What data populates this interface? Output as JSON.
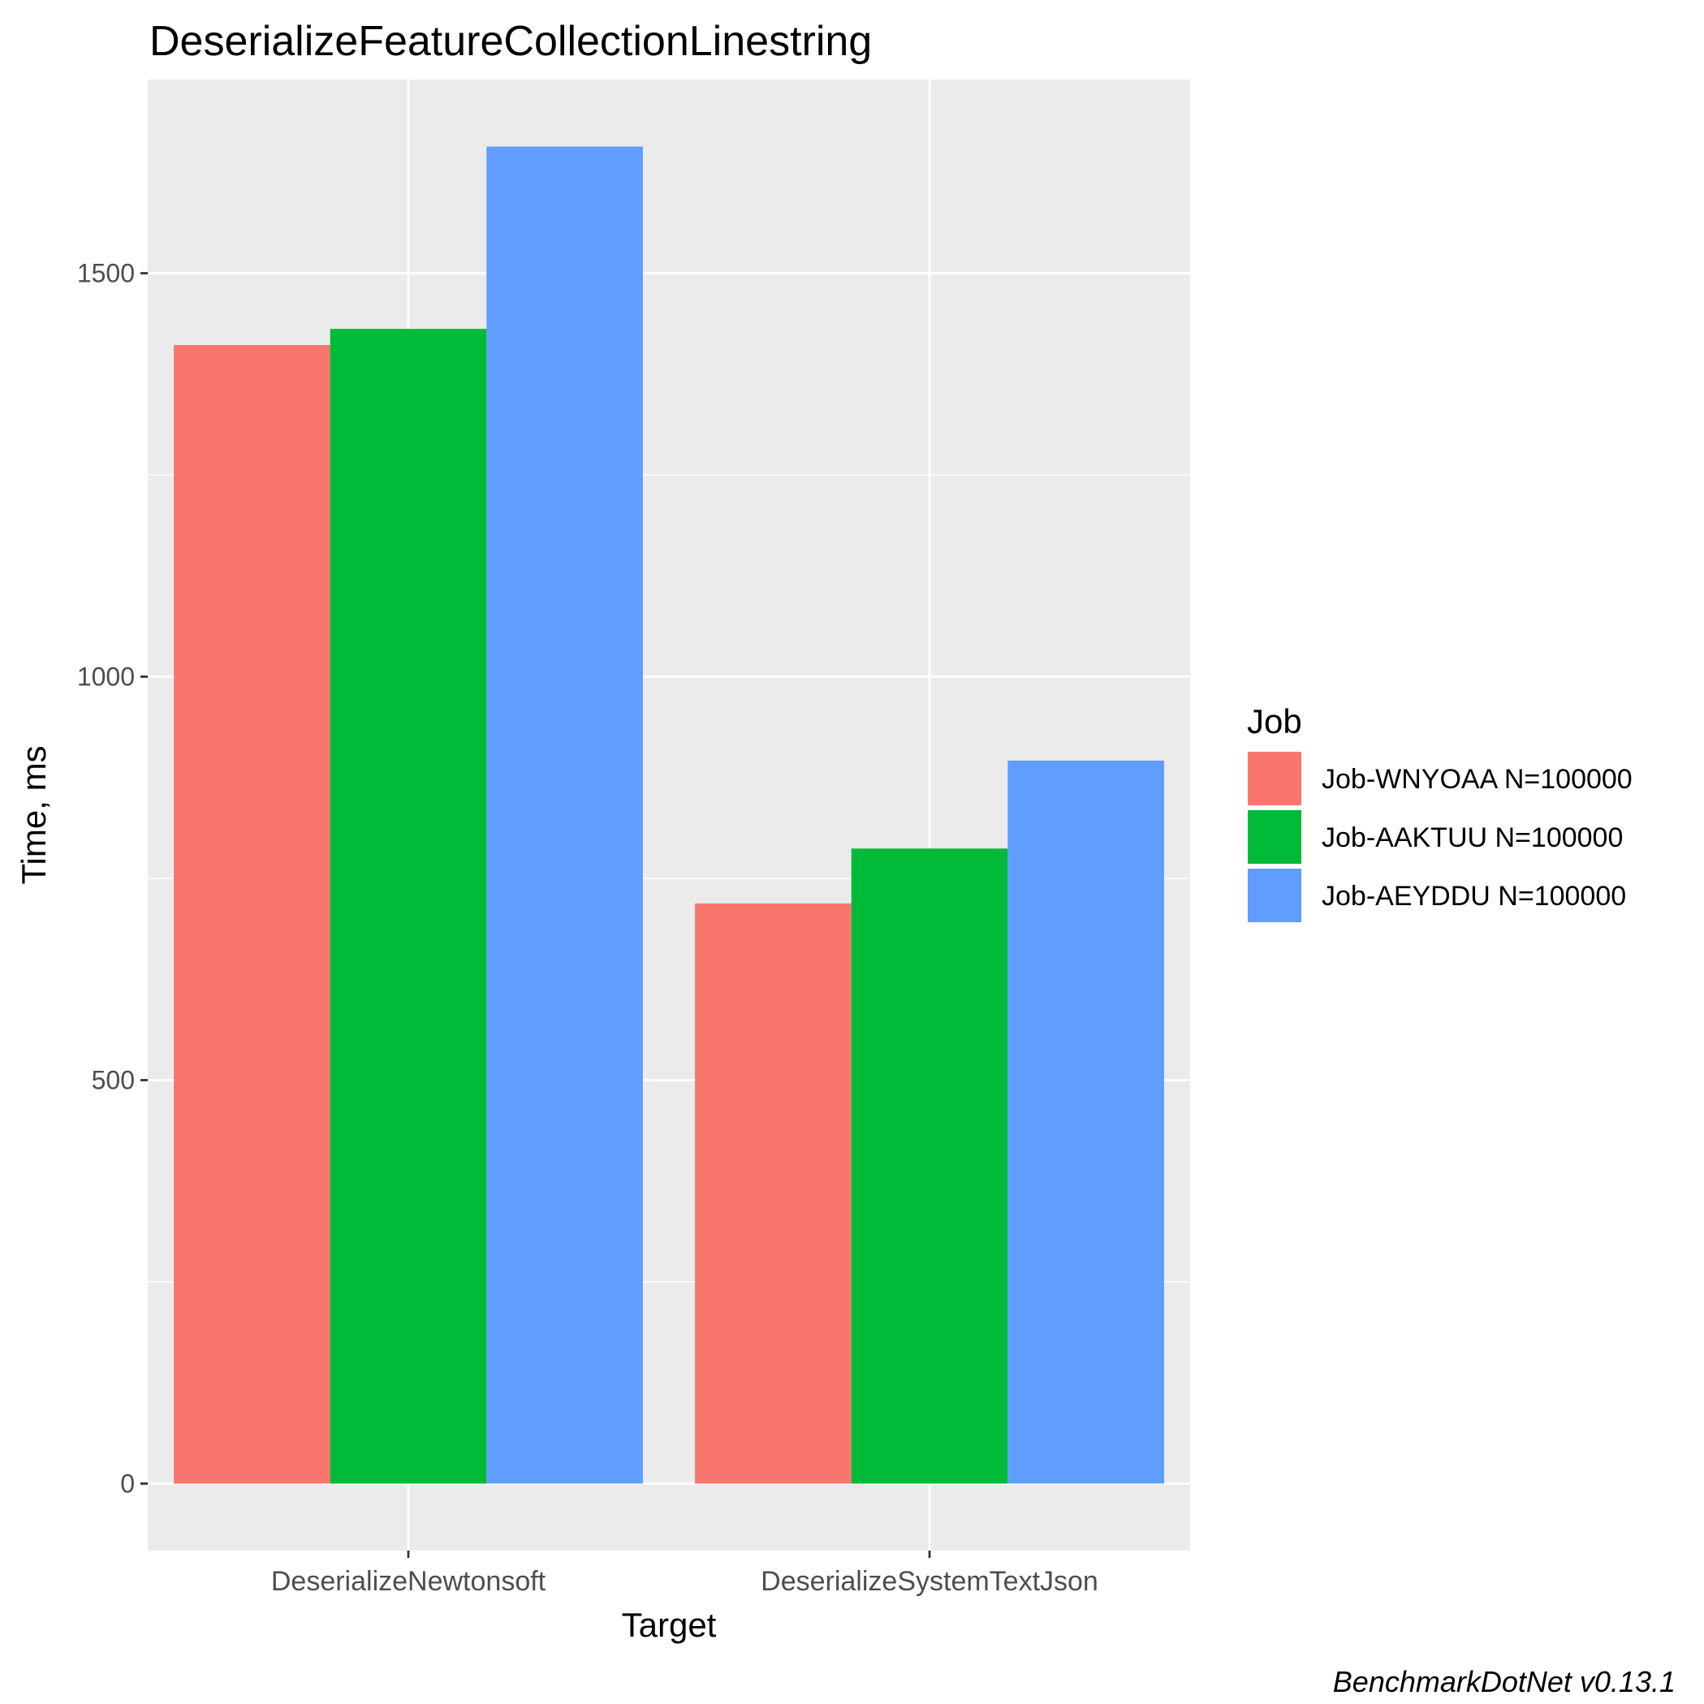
{
  "chart_data": {
    "type": "bar",
    "title": "DeserializeFeatureCollectionLinestring",
    "xlabel": "Target",
    "ylabel": "Time, ms",
    "categories": [
      "DeserializeNewtonsoft",
      "DeserializeSystemTextJson"
    ],
    "series": [
      {
        "name": "Job-WNYOAA N=100000",
        "color": "#F8766D",
        "values": [
          1411,
          719
        ]
      },
      {
        "name": "Job-AAKTUU N=100000",
        "color": "#00BA38",
        "values": [
          1431,
          787
        ]
      },
      {
        "name": "Job-AEYDDU N=100000",
        "color": "#619CFF",
        "values": [
          1657,
          896
        ]
      }
    ],
    "ylim": [
      -83,
      1740
    ],
    "yticks": [
      0,
      500,
      1000,
      1500
    ],
    "grid": true,
    "legend": {
      "title": "Job",
      "placement": "right"
    },
    "caption": "BenchmarkDotNet v0.13.1",
    "panel_background": "#EBEBEB",
    "grid_color": "#FFFFFF"
  }
}
